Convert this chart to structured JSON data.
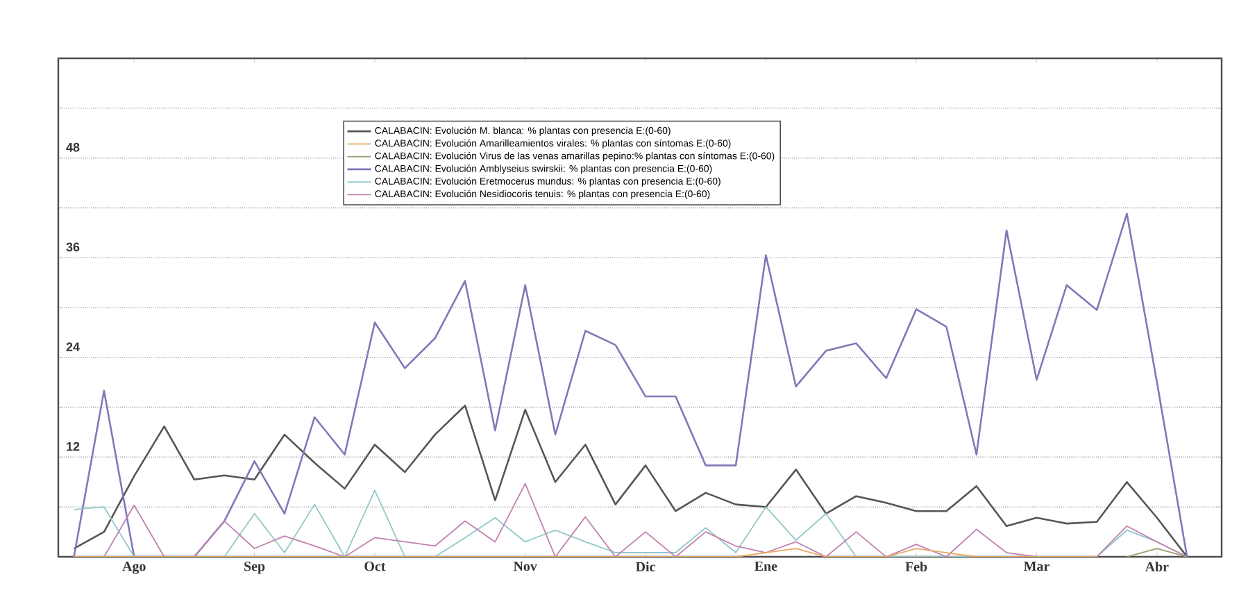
{
  "chart_data": {
    "type": "line",
    "categories": [
      null,
      null,
      "Ago",
      null,
      null,
      null,
      "Sep",
      null,
      null,
      null,
      "Oct",
      null,
      null,
      null,
      null,
      "Nov",
      null,
      null,
      null,
      "Dic",
      null,
      null,
      null,
      "Ene",
      null,
      null,
      null,
      null,
      "Feb",
      null,
      null,
      null,
      "Mar",
      null,
      null,
      null,
      "Abr",
      null
    ],
    "series": [
      {
        "name": "CALABACIN: Evolución M. blanca: % plantas con presencia E:(0-60)",
        "color": "#555555",
        "values": [
          1,
          3,
          9.7,
          15.7,
          9.3,
          9.8,
          9.3,
          14.7,
          11.3,
          8.2,
          13.5,
          10.2,
          14.7,
          18.2,
          6.8,
          17.7,
          9,
          13.5,
          6.3,
          11,
          5.5,
          7.7,
          6.3,
          6,
          10.5,
          5.2,
          7.3,
          6.5,
          5.5,
          5.5,
          8.5,
          3.7,
          4.7,
          4,
          4.2,
          9,
          4.7,
          0
        ]
      },
      {
        "name": "CALABACIN: Evolución Amarilleamientos virales: % plantas con síntomas E:(0-60)",
        "color": "#e8a860",
        "values": [
          0,
          0,
          0,
          0,
          0,
          0,
          0,
          0,
          0,
          0,
          0,
          0,
          0,
          0,
          0,
          0,
          0,
          0,
          0,
          0,
          0,
          0,
          0,
          0.5,
          1,
          0,
          0,
          0,
          1,
          0.5,
          0,
          0,
          0,
          0,
          0,
          null,
          null,
          null
        ]
      },
      {
        "name": "CALABACIN: Evolución Virus de las venas amarillas pepino:% plantas con síntomas E:(0-60)",
        "color": "#9a9a70",
        "values": [
          null,
          null,
          null,
          null,
          null,
          null,
          null,
          null,
          null,
          null,
          null,
          null,
          null,
          null,
          null,
          null,
          null,
          null,
          null,
          null,
          null,
          null,
          null,
          null,
          null,
          null,
          null,
          null,
          null,
          null,
          null,
          null,
          null,
          null,
          null,
          0,
          1,
          0
        ]
      },
      {
        "name": "CALABACIN: Evolución Amblyseius swirskii: % plantas con presencia E:(0-60)",
        "color": "#8078b8",
        "values": [
          0,
          20,
          0,
          0,
          0,
          4.3,
          11.5,
          5.2,
          16.8,
          12.3,
          28.2,
          22.7,
          26.3,
          33.2,
          15.2,
          32.7,
          14.7,
          27.2,
          25.5,
          19.3,
          19.3,
          11,
          11,
          36.3,
          20.5,
          24.8,
          25.7,
          21.5,
          29.8,
          27.7,
          12.3,
          39.3,
          21.3,
          32.7,
          29.7,
          41.3,
          21,
          0
        ]
      },
      {
        "name": "CALABACIN: Evolución Eretmocerus mundus: % plantas con presencia E:(0-60)",
        "color": "#90c8c8",
        "values": [
          5.7,
          6,
          0,
          0,
          0,
          0,
          5.2,
          0.5,
          6.3,
          0,
          8,
          0,
          0,
          2.3,
          4.7,
          1.8,
          3.2,
          1.8,
          0.5,
          0.5,
          0.5,
          3.5,
          0.5,
          6,
          2,
          5.2,
          0,
          0,
          0,
          0,
          0,
          0,
          0,
          0,
          0,
          3.2,
          1.8,
          0
        ]
      },
      {
        "name": "CALABACIN: Evolución Nesidiocoris tenuis: % plantas con presencia E:(0-60)",
        "color": "#c080b0",
        "values": [
          0,
          0,
          6.2,
          0,
          0,
          4.3,
          1,
          2.5,
          1.3,
          0,
          2.3,
          1.8,
          1.3,
          4.3,
          1.8,
          8.8,
          0,
          4.8,
          0,
          3,
          0,
          3,
          1.3,
          0.5,
          1.8,
          0,
          3,
          0,
          1.5,
          0,
          3.3,
          0.5,
          0,
          0,
          0,
          3.7,
          1.8,
          0
        ]
      }
    ],
    "ylim": [
      0,
      60
    ],
    "yticks": [
      {
        "value": 0,
        "label": null
      },
      {
        "value": 6,
        "label": null
      },
      12,
      {
        "value": 18,
        "label": null
      },
      24,
      {
        "value": 30,
        "label": null
      },
      36,
      {
        "value": 42,
        "label": null
      },
      48,
      {
        "value": 54,
        "label": null
      },
      {
        "value": 60,
        "label": null
      }
    ],
    "grid": "y",
    "legend": "top",
    "marker": "none",
    "line_style": "solid"
  }
}
